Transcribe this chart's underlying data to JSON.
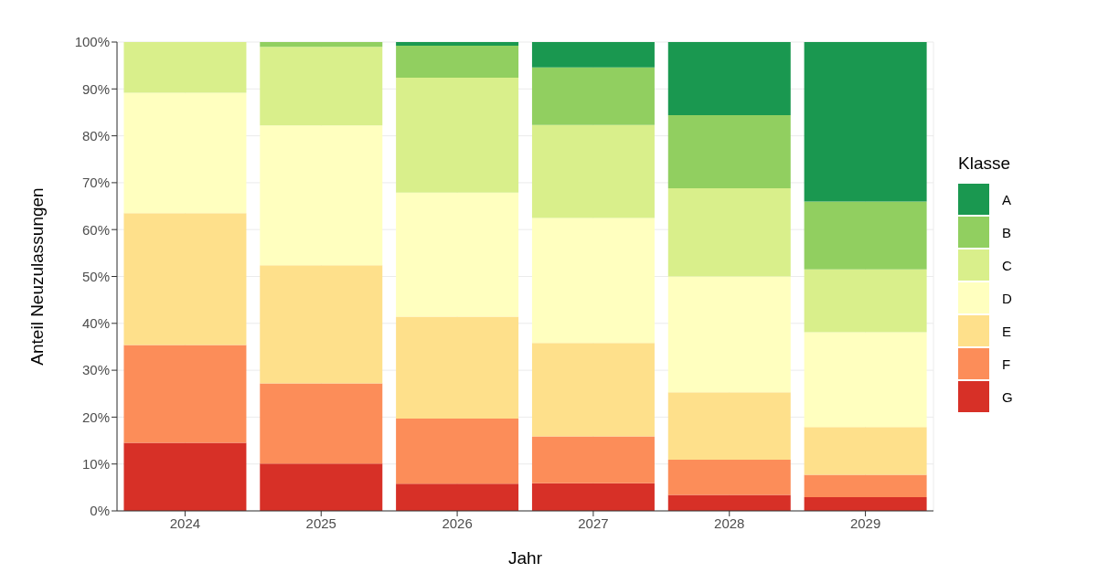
{
  "chart_data": {
    "type": "bar",
    "stacked": true,
    "xlabel": "Jahr",
    "ylabel": "Anteil Neuzulassungen",
    "legend_title": "Klasse",
    "legend": "right",
    "categories": [
      "2024",
      "2025",
      "2026",
      "2027",
      "2028",
      "2029"
    ],
    "series": [
      {
        "name": "G",
        "color": "#d73027",
        "values": [
          14.5,
          10.1,
          5.8,
          5.9,
          3.4,
          2.9
        ]
      },
      {
        "name": "F",
        "color": "#fc8d59",
        "values": [
          20.9,
          17.1,
          13.9,
          10.0,
          7.5,
          4.8
        ]
      },
      {
        "name": "E",
        "color": "#fee08b",
        "values": [
          28.1,
          25.2,
          21.7,
          19.9,
          14.4,
          10.2
        ]
      },
      {
        "name": "D",
        "color": "#ffffbf",
        "values": [
          25.7,
          29.8,
          26.5,
          26.7,
          24.7,
          20.2
        ]
      },
      {
        "name": "C",
        "color": "#d9ef8b",
        "values": [
          10.8,
          16.8,
          24.5,
          19.8,
          18.8,
          13.4
        ]
      },
      {
        "name": "B",
        "color": "#91cf60",
        "values": [
          0,
          1.0,
          6.8,
          12.3,
          15.6,
          14.5
        ]
      },
      {
        "name": "A",
        "color": "#1a9850",
        "values": [
          0,
          0,
          0.8,
          5.4,
          15.6,
          34.0
        ]
      }
    ],
    "ylim": [
      0,
      100
    ],
    "yticks": [
      {
        "value": 0,
        "label": "0%"
      },
      {
        "value": 10,
        "label": "10%"
      },
      {
        "value": 20,
        "label": "20%"
      },
      {
        "value": 30,
        "label": "30%"
      },
      {
        "value": 40,
        "label": "40%"
      },
      {
        "value": 50,
        "label": "50%"
      },
      {
        "value": 60,
        "label": "60%"
      },
      {
        "value": 70,
        "label": "70%"
      },
      {
        "value": 80,
        "label": "80%"
      },
      {
        "value": 90,
        "label": "90%"
      },
      {
        "value": 100,
        "label": "100%"
      }
    ],
    "grid": true
  }
}
